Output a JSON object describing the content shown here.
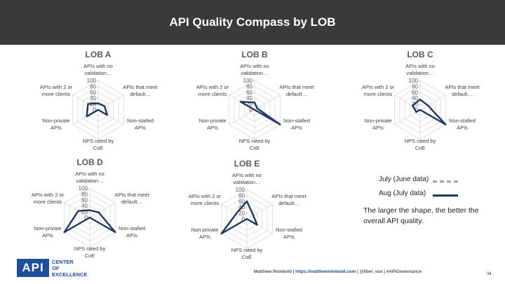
{
  "page": {
    "title": "API Quality Compass by LOB"
  },
  "chart_data": [
    {
      "type": "radar",
      "title": "LOB A",
      "axes": [
        "APIs with no validation…",
        "APIs that meet default…",
        "Non-stalled APIs",
        "NPS rated by CoE",
        "Non-private APIs",
        "APIs with 2 or more clients"
      ],
      "ticks": [
        "100",
        "80",
        "60",
        "40",
        "20",
        "0"
      ],
      "rlim": [
        0,
        100
      ],
      "series": [
        {
          "name": "Aug (July data)",
          "values": [
            22,
            25,
            35,
            0,
            45,
            40
          ]
        }
      ]
    },
    {
      "type": "radar",
      "title": "LOB B",
      "axes": [
        "APIs with no validation…",
        "APIs that meet default…",
        "Non-stalled APIs",
        "NPS rated by CoE",
        "Non-private APIs",
        "APIs with 2 or more clients"
      ],
      "ticks": [
        "100",
        "80",
        "60",
        "40",
        "20",
        "0"
      ],
      "rlim": [
        0,
        100
      ],
      "series": [
        {
          "name": "Aug (July data)",
          "values": [
            25,
            10,
            100,
            0,
            0,
            55
          ]
        }
      ]
    },
    {
      "type": "radar",
      "title": "LOB C",
      "axes": [
        "APIs with no validation…",
        "APIs that meet default…",
        "Non-stalled APIs",
        "NPS rated by CoE",
        "Non-private APIs",
        "APIs with 2 or more clients"
      ],
      "ticks": [
        "100",
        "80",
        "60",
        "40",
        "20",
        "0"
      ],
      "rlim": [
        0,
        100
      ],
      "series": [
        {
          "name": "Aug (July data)",
          "values": [
            35,
            30,
            100,
            0,
            15,
            30
          ]
        }
      ]
    },
    {
      "type": "radar",
      "title": "LOB D",
      "axes": [
        "APIs with no validation…",
        "APIs that meet default…",
        "Non-stalled APIs",
        "NPS rated by CoE",
        "Non-private APIs",
        "APIs with 2 or more clients"
      ],
      "ticks": [
        "100",
        "80",
        "60",
        "40",
        "20",
        "0"
      ],
      "rlim": [
        0,
        100
      ],
      "series": [
        {
          "name": "Aug (July data)",
          "values": [
            25,
            35,
            100,
            0,
            100,
            45
          ]
        }
      ]
    },
    {
      "type": "radar",
      "title": "LOB E",
      "axes": [
        "APIs with no validation…",
        "APIs that meet default…",
        "Non-stalled APIs",
        "NPS rated by CoE",
        "Non-private APIs",
        "APIs with 2 or more clients"
      ],
      "ticks": [
        "100",
        "80",
        "60",
        "40",
        "20",
        "0"
      ],
      "rlim": [
        0,
        100
      ],
      "series": [
        {
          "name": "Aug (July data)",
          "values": [
            60,
            25,
            40,
            0,
            100,
            40
          ]
        }
      ]
    }
  ],
  "legend": {
    "items": [
      {
        "label": "July (June data)",
        "color": "#a6a6a6",
        "style": "dashed"
      },
      {
        "label": "Aug (July data)",
        "color": "#1f3864",
        "style": "solid"
      }
    ]
  },
  "note": "The larger the shape, the better the overall API quality.",
  "logo": {
    "mark": "API",
    "line1": "CENTER",
    "line2": "OF",
    "line3": "EXCELLENCE"
  },
  "footer": {
    "author": "Matthew Reinbold | ",
    "link": "https://matthewreinbold.com",
    "rest": " | @libel_vox | #APIGovernance"
  },
  "page_number": "34",
  "colors": {
    "header_bg": "#3a3a3a",
    "series_aug": "#1f3864",
    "series_july": "#a6a6a6",
    "grid": "#d9d9d9",
    "brand_blue": "#1f4e9c"
  }
}
